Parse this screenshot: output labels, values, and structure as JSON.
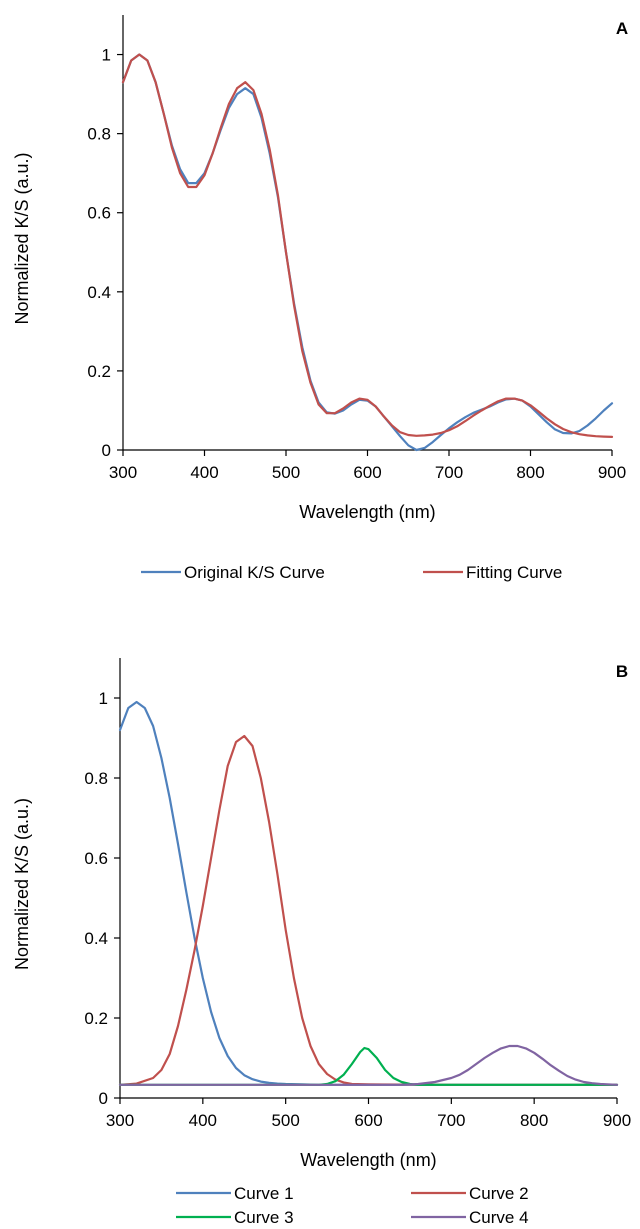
{
  "chart_data": [
    {
      "panel": "A",
      "type": "line",
      "xlabel": "Wavelength (nm)",
      "ylabel": "Normalized K/S (a.u.)",
      "xlim": [
        300,
        900
      ],
      "ylim": [
        0,
        1.1
      ],
      "xticks": [
        300,
        400,
        500,
        600,
        700,
        800,
        900
      ],
      "yticks": [
        0,
        0.2,
        0.4,
        0.6,
        0.8,
        1
      ],
      "ytick_labels": [
        "0",
        "0.2",
        "0.4",
        "0.6",
        "0.8",
        "1"
      ],
      "legend_position": "bottom",
      "series": [
        {
          "name": "Original K/S Curve",
          "color": "#4f81bd",
          "x": [
            300,
            310,
            320,
            330,
            340,
            350,
            360,
            370,
            380,
            390,
            400,
            410,
            420,
            430,
            440,
            450,
            460,
            470,
            480,
            490,
            500,
            510,
            520,
            530,
            540,
            550,
            560,
            570,
            580,
            590,
            600,
            610,
            620,
            630,
            640,
            650,
            660,
            670,
            680,
            690,
            700,
            710,
            720,
            730,
            740,
            750,
            760,
            770,
            780,
            790,
            800,
            810,
            820,
            830,
            840,
            850,
            860,
            870,
            880,
            890,
            900
          ],
          "y": [
            0.93,
            0.985,
            1.0,
            0.985,
            0.93,
            0.85,
            0.77,
            0.71,
            0.675,
            0.675,
            0.7,
            0.75,
            0.81,
            0.865,
            0.9,
            0.915,
            0.9,
            0.84,
            0.75,
            0.64,
            0.5,
            0.37,
            0.26,
            0.175,
            0.12,
            0.095,
            0.092,
            0.1,
            0.115,
            0.127,
            0.125,
            0.11,
            0.085,
            0.06,
            0.035,
            0.012,
            0.0,
            0.005,
            0.02,
            0.038,
            0.055,
            0.07,
            0.083,
            0.094,
            0.102,
            0.11,
            0.12,
            0.128,
            0.13,
            0.125,
            0.11,
            0.09,
            0.07,
            0.052,
            0.043,
            0.042,
            0.048,
            0.062,
            0.08,
            0.1,
            0.118
          ]
        },
        {
          "name": "Fitting Curve",
          "color": "#c0504d",
          "x": [
            300,
            310,
            320,
            330,
            340,
            350,
            360,
            370,
            380,
            390,
            400,
            410,
            420,
            430,
            440,
            450,
            460,
            470,
            480,
            490,
            500,
            510,
            520,
            530,
            540,
            550,
            560,
            570,
            580,
            590,
            600,
            610,
            620,
            630,
            640,
            650,
            660,
            670,
            680,
            690,
            700,
            710,
            720,
            730,
            740,
            750,
            760,
            770,
            780,
            790,
            800,
            810,
            820,
            830,
            840,
            850,
            860,
            870,
            880,
            890,
            900
          ],
          "y": [
            0.93,
            0.985,
            1.0,
            0.985,
            0.93,
            0.85,
            0.765,
            0.7,
            0.665,
            0.665,
            0.695,
            0.75,
            0.815,
            0.875,
            0.915,
            0.93,
            0.91,
            0.85,
            0.76,
            0.645,
            0.5,
            0.365,
            0.25,
            0.17,
            0.115,
            0.093,
            0.093,
            0.105,
            0.12,
            0.13,
            0.127,
            0.11,
            0.085,
            0.062,
            0.045,
            0.038,
            0.036,
            0.037,
            0.039,
            0.043,
            0.05,
            0.06,
            0.073,
            0.087,
            0.1,
            0.112,
            0.123,
            0.13,
            0.13,
            0.125,
            0.113,
            0.097,
            0.08,
            0.065,
            0.053,
            0.045,
            0.04,
            0.037,
            0.035,
            0.034,
            0.033
          ]
        }
      ]
    },
    {
      "panel": "B",
      "type": "line",
      "xlabel": "Wavelength (nm)",
      "ylabel": "Normalized K/S (a.u.)",
      "xlim": [
        300,
        900
      ],
      "ylim": [
        0,
        1.1
      ],
      "xticks": [
        300,
        400,
        500,
        600,
        700,
        800,
        900
      ],
      "yticks": [
        0,
        0.2,
        0.4,
        0.6,
        0.8,
        1
      ],
      "ytick_labels": [
        "0",
        "0.2",
        "0.4",
        "0.6",
        "0.8",
        "1"
      ],
      "legend_position": "bottom",
      "series": [
        {
          "name": "Curve 1",
          "color": "#4f81bd",
          "x": [
            300,
            310,
            320,
            330,
            340,
            350,
            360,
            370,
            380,
            390,
            400,
            410,
            420,
            430,
            440,
            450,
            460,
            470,
            480,
            490,
            500,
            520,
            540,
            560,
            600,
            700,
            800,
            900
          ],
          "y": [
            0.92,
            0.975,
            0.99,
            0.975,
            0.93,
            0.85,
            0.75,
            0.635,
            0.515,
            0.4,
            0.3,
            0.215,
            0.15,
            0.105,
            0.075,
            0.057,
            0.047,
            0.041,
            0.038,
            0.036,
            0.035,
            0.034,
            0.033,
            0.033,
            0.033,
            0.033,
            0.033,
            0.033
          ]
        },
        {
          "name": "Curve 2",
          "color": "#c0504d",
          "x": [
            300,
            320,
            340,
            350,
            360,
            370,
            380,
            390,
            400,
            410,
            420,
            430,
            440,
            450,
            460,
            470,
            480,
            490,
            500,
            510,
            520,
            530,
            540,
            550,
            560,
            570,
            580,
            600,
            700,
            800,
            900
          ],
          "y": [
            0.033,
            0.036,
            0.05,
            0.07,
            0.11,
            0.18,
            0.27,
            0.37,
            0.48,
            0.6,
            0.72,
            0.83,
            0.89,
            0.905,
            0.88,
            0.8,
            0.69,
            0.56,
            0.42,
            0.3,
            0.2,
            0.13,
            0.085,
            0.06,
            0.046,
            0.039,
            0.035,
            0.034,
            0.033,
            0.033,
            0.033
          ]
        },
        {
          "name": "Curve 3",
          "color": "#00b050",
          "x": [
            300,
            540,
            550,
            560,
            570,
            580,
            590,
            595,
            600,
            610,
            620,
            630,
            640,
            650,
            660,
            900
          ],
          "y": [
            0.033,
            0.033,
            0.035,
            0.042,
            0.058,
            0.085,
            0.115,
            0.125,
            0.122,
            0.1,
            0.07,
            0.05,
            0.04,
            0.035,
            0.033,
            0.033
          ]
        },
        {
          "name": "Curve 4",
          "color": "#8064a2",
          "x": [
            300,
            640,
            660,
            680,
            700,
            710,
            720,
            730,
            740,
            750,
            760,
            770,
            780,
            790,
            800,
            810,
            820,
            830,
            840,
            850,
            860,
            870,
            880,
            900
          ],
          "y": [
            0.033,
            0.033,
            0.035,
            0.04,
            0.05,
            0.058,
            0.07,
            0.085,
            0.1,
            0.113,
            0.124,
            0.13,
            0.13,
            0.124,
            0.113,
            0.098,
            0.082,
            0.068,
            0.055,
            0.046,
            0.04,
            0.037,
            0.035,
            0.033
          ]
        }
      ]
    }
  ]
}
